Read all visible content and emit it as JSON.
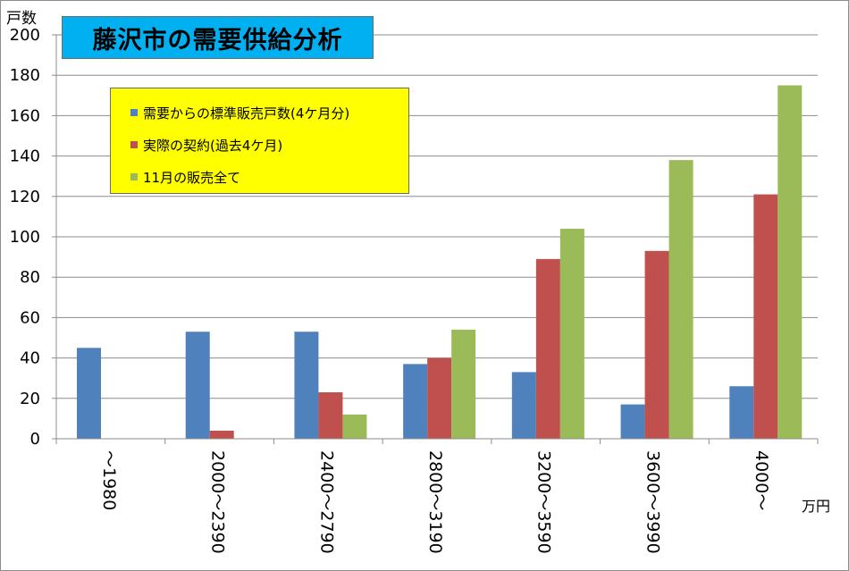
{
  "chart_data": {
    "type": "bar",
    "title": "藤沢市の需要供給分析",
    "ylabel": "戸数",
    "xlabel": "万円",
    "ylim": [
      0,
      200
    ],
    "yticks": [
      0,
      20,
      40,
      60,
      80,
      100,
      120,
      140,
      160,
      180,
      200
    ],
    "categories": [
      "～1980",
      "2000～2390",
      "2400～2790",
      "2800～3190",
      "3200～3590",
      "3600～3990",
      "4000～"
    ],
    "series": [
      {
        "name": "需要からの標準販売戸数(4ケ月分)",
        "color": "#4f81bd",
        "values": [
          45,
          53,
          53,
          37,
          33,
          17,
          26
        ]
      },
      {
        "name": "実際の契約(過去4ケ月)",
        "color": "#c0504d",
        "values": [
          0,
          4,
          23,
          40,
          89,
          93,
          121
        ]
      },
      {
        "name": "11月の販売全て",
        "color": "#9bbb59",
        "values": [
          0,
          0,
          12,
          54,
          104,
          138,
          175
        ]
      }
    ],
    "grid": true,
    "legend_position": "top-left"
  },
  "colors": {
    "title_background": "#00b0f0",
    "legend_background": "#ffff00"
  }
}
